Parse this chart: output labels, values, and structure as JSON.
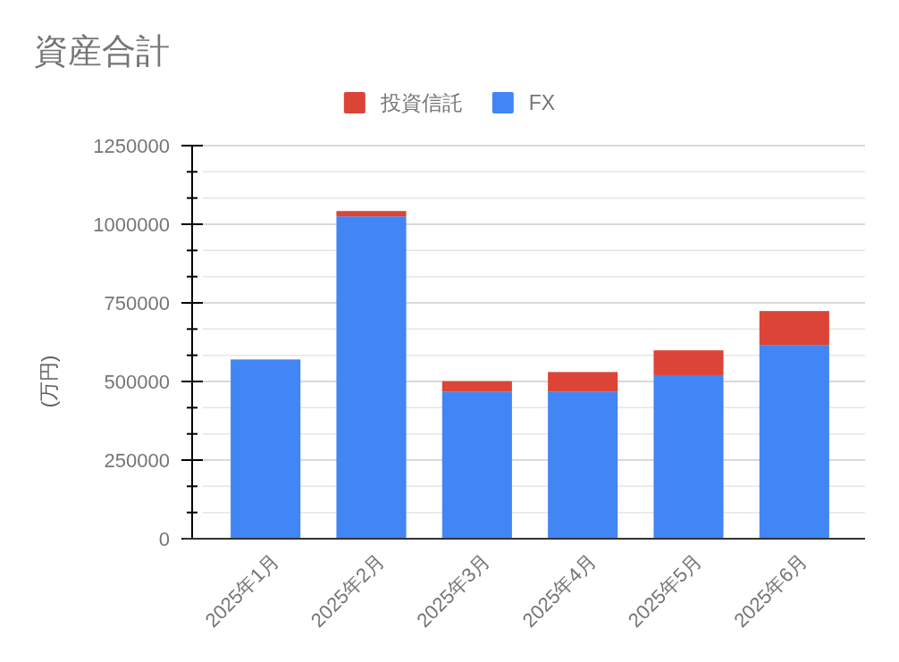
{
  "chart_data": {
    "type": "bar",
    "title": "資産合計",
    "ylabel": "(万円)",
    "categories": [
      "2025年1月",
      "2025年2月",
      "2025年3月",
      "2025年4月",
      "2025年5月",
      "2025年6月"
    ],
    "stacked": true,
    "series": [
      {
        "name": "FX",
        "color": "#4285f4",
        "values": [
          570000,
          1025000,
          468000,
          468000,
          520000,
          616000
        ]
      },
      {
        "name": "投資信託",
        "color": "#db4437",
        "values": [
          null,
          17000,
          33000,
          62000,
          79000,
          108000
        ]
      }
    ],
    "ylim": [
      0,
      1250000
    ],
    "yticks": [
      0,
      {
        "value": 83333,
        "label": null
      },
      {
        "value": 166667,
        "label": null
      },
      250000,
      {
        "value": 333333,
        "label": null
      },
      {
        "value": 416667,
        "label": null
      },
      500000,
      {
        "value": 583333,
        "label": null
      },
      {
        "value": 666667,
        "label": null
      },
      750000,
      {
        "value": 833333,
        "label": null
      },
      {
        "value": 916667,
        "label": null
      },
      1000000,
      {
        "value": 1083333,
        "label": null
      },
      {
        "value": 1166667,
        "label": null
      },
      1250000
    ],
    "grid": true,
    "legend": "top"
  }
}
